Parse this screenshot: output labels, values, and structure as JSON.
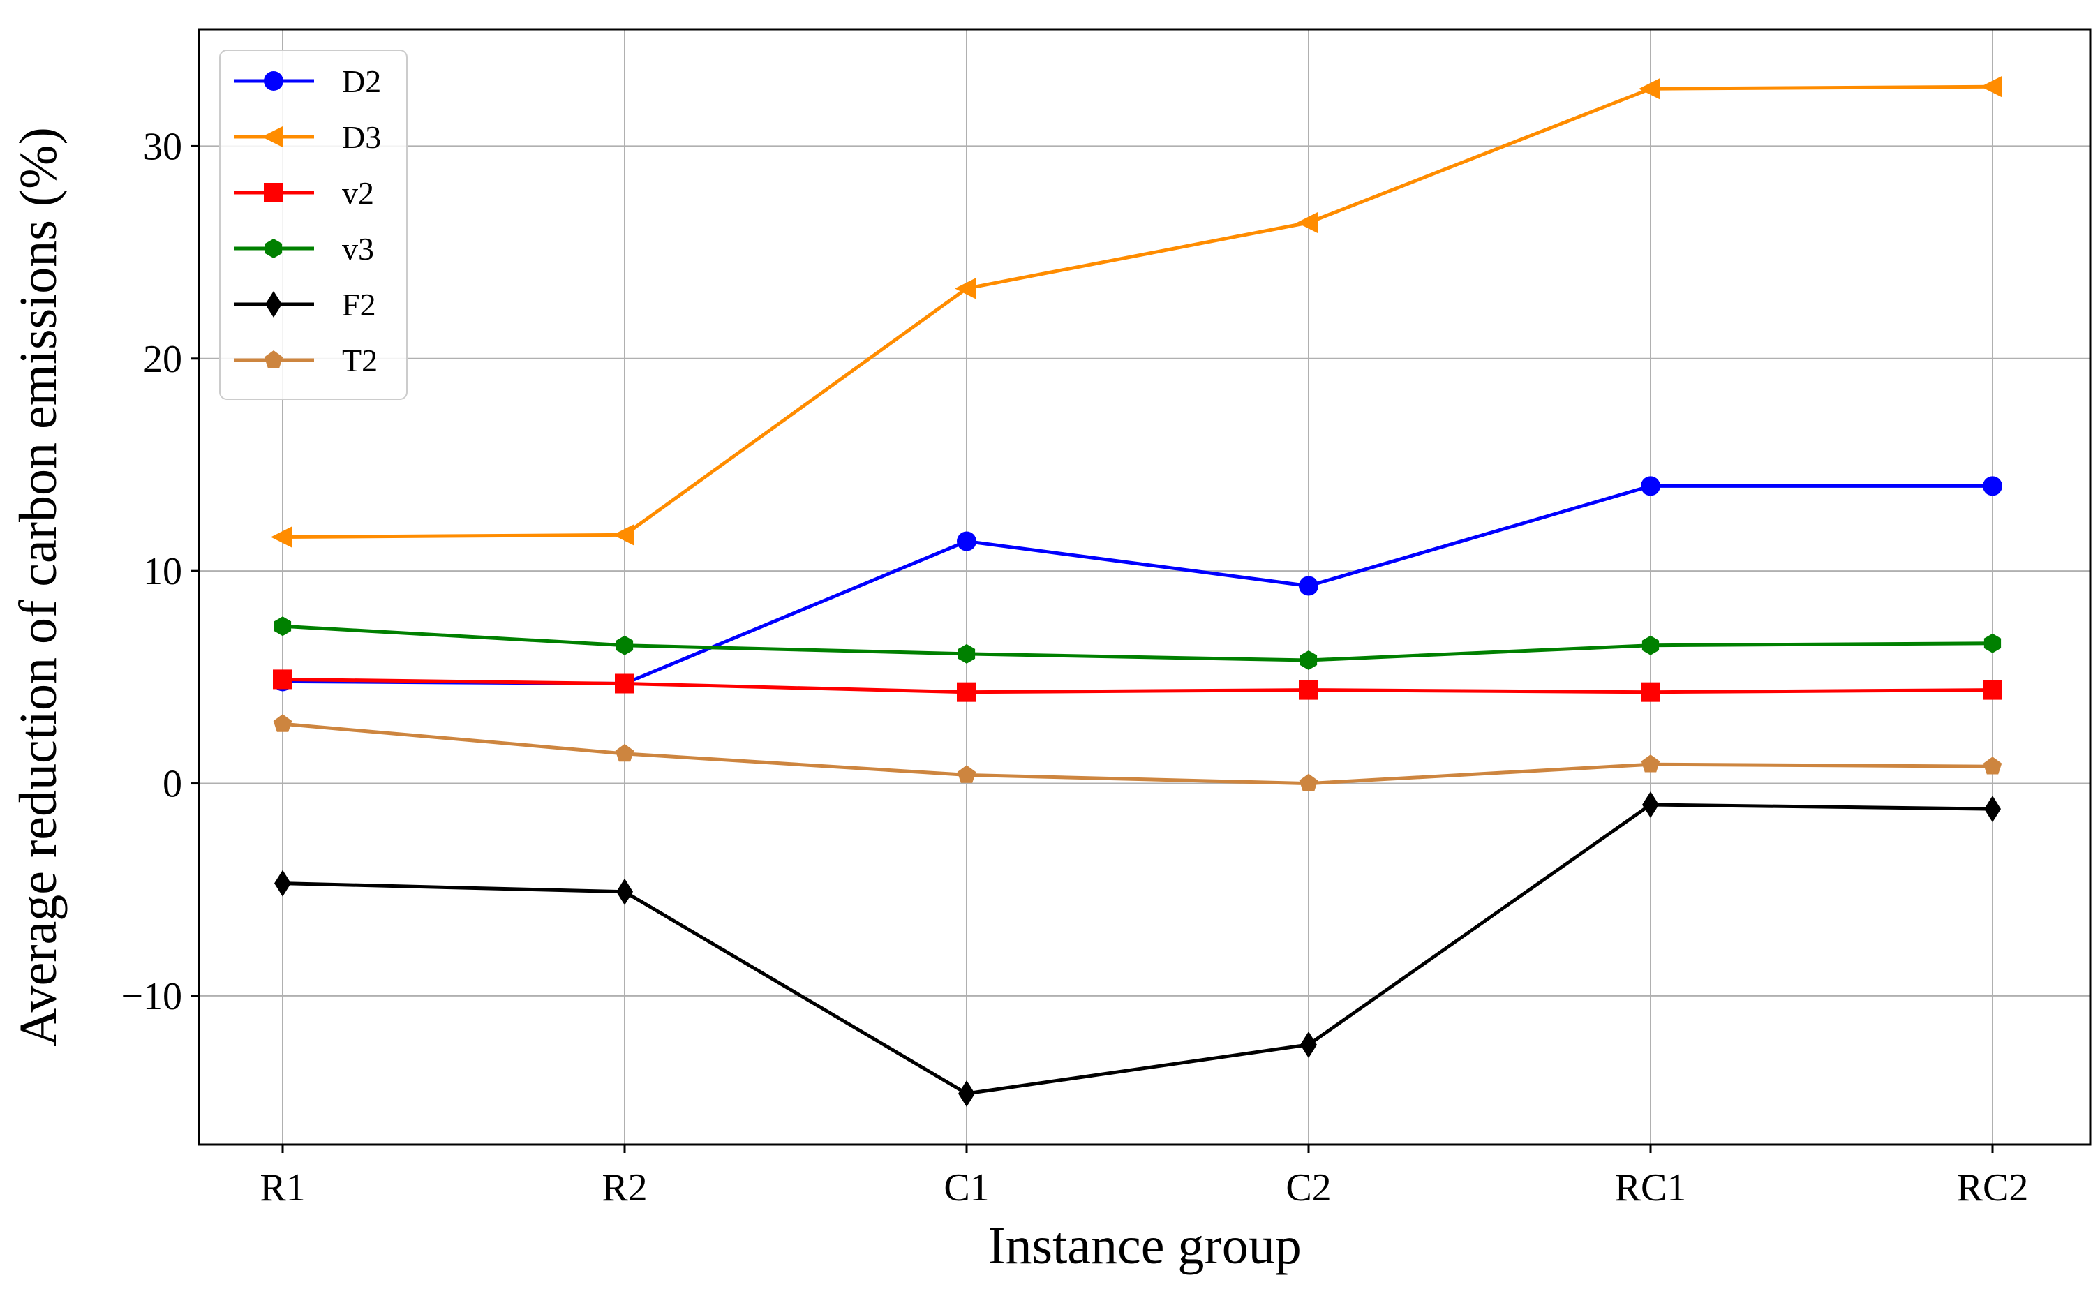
{
  "chart_data": {
    "type": "line",
    "title": "",
    "xlabel": "Instance group",
    "ylabel": "Average reduction of carbon emissions (%)",
    "categories": [
      "R1",
      "R2",
      "C1",
      "C2",
      "RC1",
      "RC2"
    ],
    "ylim": [
      -17,
      35.5
    ],
    "yticks": [
      -10,
      0,
      10,
      20,
      30
    ],
    "ytick_labels": [
      "−10",
      "0",
      "10",
      "20",
      "30"
    ],
    "grid": true,
    "legend_position": "top-left",
    "series": [
      {
        "name": "D2",
        "color": "#0000ff",
        "marker": "circle",
        "values": [
          4.8,
          4.7,
          11.4,
          9.3,
          14.0,
          14.0
        ]
      },
      {
        "name": "D3",
        "color": "#ff8c00",
        "marker": "triangle-left",
        "values": [
          11.6,
          11.7,
          23.3,
          26.4,
          32.7,
          32.8
        ]
      },
      {
        "name": "v2",
        "color": "#ff0000",
        "marker": "square",
        "values": [
          4.9,
          4.7,
          4.3,
          4.4,
          4.3,
          4.4
        ]
      },
      {
        "name": "v3",
        "color": "#008000",
        "marker": "hexagon",
        "values": [
          7.4,
          6.5,
          6.1,
          5.8,
          6.5,
          6.6
        ]
      },
      {
        "name": "F2",
        "color": "#000000",
        "marker": "diamond",
        "values": [
          -4.7,
          -5.1,
          -14.6,
          -12.3,
          -1.0,
          -1.2
        ]
      },
      {
        "name": "T2",
        "color": "#cd853f",
        "marker": "pentagon",
        "values": [
          2.8,
          1.4,
          0.4,
          0.0,
          0.9,
          0.8
        ]
      }
    ]
  }
}
